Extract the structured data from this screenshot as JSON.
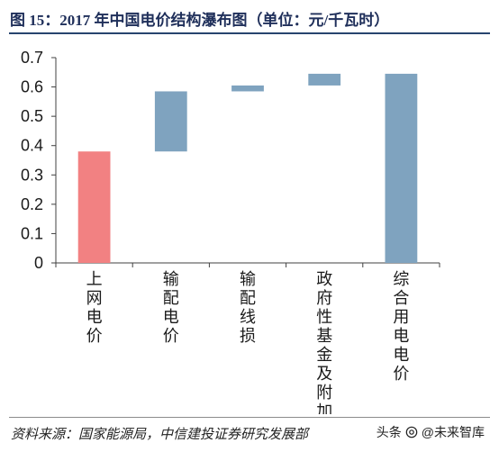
{
  "figure": {
    "title": "图 15：2017 年中国电价结构瀑布图（单位：元/千瓦时）",
    "source": "资料来源：国家能源局，中信建投证券研究发展部",
    "watermark": {
      "platform": "头条",
      "account": "@未来智库"
    }
  },
  "chart_data": {
    "type": "bar",
    "subtype": "waterfall",
    "title": "",
    "xlabel": "",
    "ylabel": "",
    "ylim": [
      0,
      0.7
    ],
    "yticks": [
      0,
      0.1,
      0.2,
      0.3,
      0.4,
      0.5,
      0.6,
      0.7
    ],
    "ytick_labels": [
      "0",
      "0.1",
      "0.2",
      "0.3",
      "0.4",
      "0.5",
      "0.6",
      "0.7"
    ],
    "grid": false,
    "legend": "none",
    "categories": [
      "上网电价",
      "输配电价",
      "输配线损",
      "政府性基金及附加",
      "综合用电电价"
    ],
    "bars": [
      {
        "category": "上网电价",
        "base": 0,
        "top": 0.38,
        "value": 0.38,
        "color": "#f28182"
      },
      {
        "category": "输配电价",
        "base": 0.38,
        "top": 0.585,
        "value": 0.205,
        "color": "#7fa3bf"
      },
      {
        "category": "输配线损",
        "base": 0.585,
        "top": 0.605,
        "value": 0.02,
        "color": "#7fa3bf"
      },
      {
        "category": "政府性基金及附加",
        "base": 0.605,
        "top": 0.645,
        "value": 0.04,
        "color": "#7fa3bf"
      },
      {
        "category": "综合用电电价",
        "base": 0,
        "top": 0.645,
        "value": 0.645,
        "color": "#7fa3bf"
      }
    ]
  }
}
